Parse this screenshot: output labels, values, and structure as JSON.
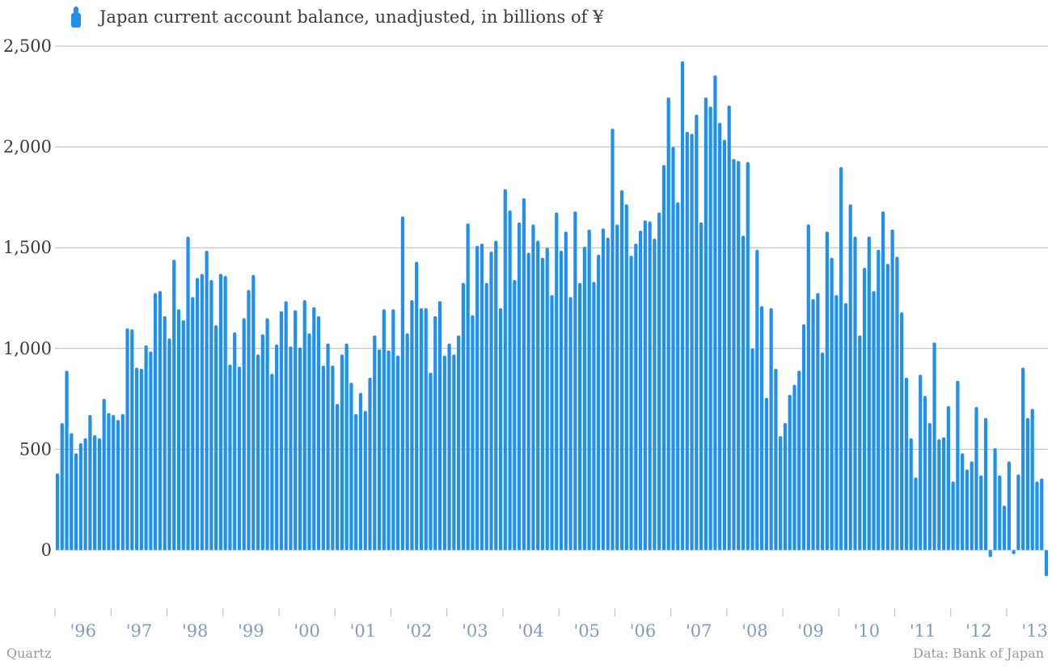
{
  "legend": {
    "label": "Japan current account balance, unadjusted, in billions of ¥",
    "color": "#1f8ff0"
  },
  "footer": {
    "left": "Quartz",
    "right": "Data: Bank of Japan"
  },
  "chart_data": {
    "type": "bar",
    "title": "",
    "xlabel": "",
    "ylabel": "",
    "ylim": [
      -250,
      2500
    ],
    "yticks": [
      0,
      500,
      1000,
      1500,
      2000,
      2500
    ],
    "ytick_labels": [
      "0",
      "500",
      "1,000",
      "1,500",
      "2,000",
      "2,500"
    ],
    "x_tick_labels": [
      "'96",
      "'97",
      "'98",
      "'99",
      "'00",
      "'01",
      "'02",
      "'03",
      "'04",
      "'05",
      "'06",
      "'07",
      "'08",
      "'09",
      "'10",
      "'11",
      "'12",
      "'13"
    ],
    "x_start_year": 1996,
    "grid": true,
    "legend_position": "top-left",
    "bar_color": "#1f8ff0",
    "series": [
      {
        "name": "Japan current account balance, unadjusted, in billions of ¥",
        "values": [
          380,
          630,
          890,
          580,
          480,
          530,
          555,
          670,
          570,
          555,
          750,
          680,
          670,
          645,
          675,
          1100,
          1095,
          905,
          900,
          1015,
          985,
          1275,
          1285,
          1160,
          1050,
          1440,
          1195,
          1140,
          1555,
          1255,
          1350,
          1370,
          1485,
          1340,
          1115,
          1370,
          1360,
          920,
          1080,
          910,
          1150,
          1290,
          1365,
          970,
          1070,
          1150,
          875,
          1020,
          1185,
          1235,
          1010,
          1190,
          1005,
          1240,
          1075,
          1205,
          1160,
          915,
          1025,
          915,
          725,
          970,
          1025,
          830,
          675,
          780,
          690,
          855,
          1065,
          995,
          1195,
          990,
          1195,
          965,
          1655,
          1075,
          1240,
          1430,
          1200,
          1200,
          880,
          1160,
          1235,
          965,
          1025,
          970,
          1065,
          1325,
          1620,
          1165,
          1510,
          1520,
          1325,
          1480,
          1535,
          1200,
          1790,
          1685,
          1340,
          1625,
          1745,
          1475,
          1615,
          1535,
          1450,
          1500,
          1265,
          1675,
          1485,
          1580,
          1255,
          1680,
          1325,
          1505,
          1590,
          1330,
          1465,
          1595,
          1550,
          2090,
          1615,
          1785,
          1715,
          1460,
          1520,
          1585,
          1635,
          1630,
          1545,
          1675,
          1910,
          2245,
          2000,
          1725,
          2425,
          2075,
          2065,
          2160,
          1625,
          2245,
          2200,
          2355,
          2120,
          2035,
          2205,
          1940,
          1930,
          1560,
          1925,
          1000,
          1490,
          1210,
          755,
          1200,
          900,
          565,
          630,
          770,
          820,
          890,
          1120,
          1615,
          1245,
          1275,
          980,
          1580,
          1450,
          1265,
          1900,
          1225,
          1715,
          1555,
          1065,
          1400,
          1555,
          1285,
          1490,
          1680,
          1420,
          1590,
          1455,
          1180,
          855,
          555,
          360,
          870,
          765,
          630,
          1030,
          550,
          560,
          715,
          340,
          840,
          480,
          400,
          440,
          710,
          370,
          655,
          -35,
          505,
          370,
          220,
          440,
          -20,
          375,
          905,
          655,
          700,
          340,
          355,
          -130
        ]
      }
    ]
  }
}
